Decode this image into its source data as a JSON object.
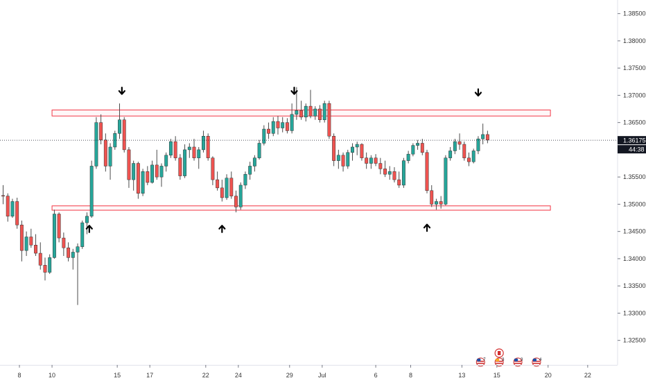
{
  "chart_data": {
    "type": "candlestick",
    "title": "",
    "xlabel": "",
    "ylabel": "",
    "ylim": [
      1.3205,
      1.3875
    ],
    "y_ticks": [
      "1.38500",
      "1.38000",
      "1.37500",
      "1.37000",
      "1.36500",
      "1.35500",
      "1.35000",
      "1.34500",
      "1.34000",
      "1.33500",
      "1.33000",
      "1.32500"
    ],
    "x_ticks": [
      {
        "label": "8",
        "idx": 3.5
      },
      {
        "label": "10",
        "idx": 10.5
      },
      {
        "label": "15",
        "idx": 24.5
      },
      {
        "label": "17",
        "idx": 31.5
      },
      {
        "label": "22",
        "idx": 43.5
      },
      {
        "label": "24",
        "idx": 50.5
      },
      {
        "label": "29",
        "idx": 61.5
      },
      {
        "label": "Jul",
        "idx": 68.5
      },
      {
        "label": "6",
        "idx": 80
      },
      {
        "label": "8",
        "idx": 87.5
      },
      {
        "label": "13",
        "idx": 98.5
      },
      {
        "label": "15",
        "idx": 106
      },
      {
        "label": "20",
        "idx": 117
      },
      {
        "label": "22",
        "idx": 125.5
      }
    ],
    "last_price": "1.36175",
    "countdown": "44:38",
    "last_price_value": 1.36175,
    "zones": [
      {
        "name": "resistance",
        "low": 1.3662,
        "high": 1.3673,
        "from_idx": 10.5,
        "to_idx": 117.5
      },
      {
        "name": "support",
        "low": 1.3489,
        "high": 1.3497,
        "from_idx": 10.5,
        "to_idx": 117.5
      }
    ],
    "arrows": [
      {
        "dir": "down",
        "idx": 25.5,
        "price": 1.3708
      },
      {
        "dir": "down",
        "idx": 62.5,
        "price": 1.3708
      },
      {
        "dir": "down",
        "idx": 102,
        "price": 1.3705
      },
      {
        "dir": "up",
        "idx": 18.5,
        "price": 1.3455
      },
      {
        "dir": "up",
        "idx": 47,
        "price": 1.3455
      },
      {
        "dir": "up",
        "idx": 91,
        "price": 1.3457
      }
    ],
    "event_badges": [
      {
        "flag": "us",
        "count": "7",
        "idx": 102.5
      },
      {
        "flag": "ca",
        "count": "",
        "idx": 106.5,
        "row": "upper"
      },
      {
        "flag": "mixed",
        "count": "3",
        "idx": 106.5
      },
      {
        "flag": "us",
        "count": "3",
        "idx": 110.5
      },
      {
        "flag": "us",
        "count": "4",
        "idx": 114.5
      }
    ],
    "colors": {
      "up": "#26a69a",
      "down": "#ef5350",
      "zone": "#f23645",
      "text": "#131722",
      "axis": "#787b86"
    },
    "candles": [
      [
        1.3516,
        1.3535,
        1.35,
        1.3515
      ],
      [
        1.3515,
        1.352,
        1.3468,
        1.3478
      ],
      [
        1.3478,
        1.351,
        1.3475,
        1.3505
      ],
      [
        1.3505,
        1.3512,
        1.3455,
        1.3462
      ],
      [
        1.3462,
        1.347,
        1.3395,
        1.3415
      ],
      [
        1.3415,
        1.345,
        1.3405,
        1.344
      ],
      [
        1.344,
        1.3455,
        1.342,
        1.3425
      ],
      [
        1.3425,
        1.3445,
        1.3405,
        1.341
      ],
      [
        1.341,
        1.343,
        1.338,
        1.3388
      ],
      [
        1.3388,
        1.3402,
        1.336,
        1.3375
      ],
      [
        1.3375,
        1.3408,
        1.3372,
        1.3402
      ],
      [
        1.3402,
        1.349,
        1.34,
        1.3482
      ],
      [
        1.3482,
        1.3485,
        1.343,
        1.3438
      ],
      [
        1.3438,
        1.3448,
        1.3405,
        1.342
      ],
      [
        1.342,
        1.343,
        1.3395,
        1.3402
      ],
      [
        1.3402,
        1.3418,
        1.338,
        1.3412
      ],
      [
        1.3412,
        1.3428,
        1.3315,
        1.3422
      ],
      [
        1.3422,
        1.347,
        1.3418,
        1.3466
      ],
      [
        1.3466,
        1.3485,
        1.3445,
        1.3478
      ],
      [
        1.3478,
        1.358,
        1.3475,
        1.357
      ],
      [
        1.357,
        1.366,
        1.3565,
        1.365
      ],
      [
        1.365,
        1.3665,
        1.361,
        1.3618
      ],
      [
        1.3618,
        1.363,
        1.356,
        1.357
      ],
      [
        1.357,
        1.3612,
        1.3545,
        1.3605
      ],
      [
        1.3605,
        1.3635,
        1.36,
        1.363
      ],
      [
        1.363,
        1.3685,
        1.362,
        1.3655
      ],
      [
        1.3655,
        1.366,
        1.3595,
        1.36
      ],
      [
        1.36,
        1.3605,
        1.353,
        1.3545
      ],
      [
        1.3545,
        1.358,
        1.3525,
        1.3575
      ],
      [
        1.3575,
        1.3578,
        1.351,
        1.352
      ],
      [
        1.352,
        1.3565,
        1.3515,
        1.356
      ],
      [
        1.356,
        1.357,
        1.3535,
        1.354
      ],
      [
        1.354,
        1.358,
        1.3538,
        1.3572
      ],
      [
        1.3572,
        1.36,
        1.3545,
        1.355
      ],
      [
        1.355,
        1.3575,
        1.3532,
        1.357
      ],
      [
        1.357,
        1.3595,
        1.356,
        1.359
      ],
      [
        1.359,
        1.362,
        1.3585,
        1.3615
      ],
      [
        1.3615,
        1.3625,
        1.358,
        1.3585
      ],
      [
        1.3585,
        1.3592,
        1.3545,
        1.3552
      ],
      [
        1.3552,
        1.361,
        1.3548,
        1.36
      ],
      [
        1.36,
        1.3612,
        1.3585,
        1.3605
      ],
      [
        1.3605,
        1.362,
        1.358,
        1.3585
      ],
      [
        1.3585,
        1.3605,
        1.3565,
        1.36
      ],
      [
        1.36,
        1.3635,
        1.3595,
        1.3625
      ],
      [
        1.3625,
        1.363,
        1.358,
        1.3585
      ],
      [
        1.3585,
        1.3588,
        1.3535,
        1.3545
      ],
      [
        1.3545,
        1.356,
        1.3525,
        1.353
      ],
      [
        1.353,
        1.3545,
        1.3505,
        1.3512
      ],
      [
        1.3512,
        1.3555,
        1.3508,
        1.3548
      ],
      [
        1.3548,
        1.356,
        1.351,
        1.3515
      ],
      [
        1.3515,
        1.3525,
        1.3485,
        1.3495
      ],
      [
        1.3495,
        1.354,
        1.349,
        1.3535
      ],
      [
        1.3535,
        1.356,
        1.3528,
        1.3555
      ],
      [
        1.3555,
        1.3578,
        1.3545,
        1.357
      ],
      [
        1.357,
        1.359,
        1.356,
        1.3585
      ],
      [
        1.3585,
        1.3618,
        1.3582,
        1.3612
      ],
      [
        1.3612,
        1.3645,
        1.3608,
        1.3638
      ],
      [
        1.3638,
        1.365,
        1.362,
        1.363
      ],
      [
        1.363,
        1.366,
        1.3625,
        1.3652
      ],
      [
        1.3652,
        1.3662,
        1.3628,
        1.364
      ],
      [
        1.364,
        1.366,
        1.3632,
        1.365
      ],
      [
        1.365,
        1.3658,
        1.363,
        1.3635
      ],
      [
        1.3635,
        1.3685,
        1.363,
        1.3665
      ],
      [
        1.3665,
        1.3715,
        1.3655,
        1.3672
      ],
      [
        1.3672,
        1.369,
        1.3655,
        1.366
      ],
      [
        1.366,
        1.3685,
        1.3652,
        1.368
      ],
      [
        1.368,
        1.371,
        1.3658,
        1.3662
      ],
      [
        1.3662,
        1.368,
        1.3655,
        1.3675
      ],
      [
        1.3675,
        1.3682,
        1.365,
        1.3655
      ],
      [
        1.3655,
        1.369,
        1.365,
        1.3685
      ],
      [
        1.3685,
        1.369,
        1.362,
        1.3625
      ],
      [
        1.3625,
        1.363,
        1.357,
        1.358
      ],
      [
        1.358,
        1.36,
        1.3565,
        1.359
      ],
      [
        1.359,
        1.3595,
        1.356,
        1.357
      ],
      [
        1.357,
        1.36,
        1.3565,
        1.3595
      ],
      [
        1.3595,
        1.3612,
        1.358,
        1.3605
      ],
      [
        1.3605,
        1.3615,
        1.359,
        1.361
      ],
      [
        1.361,
        1.3612,
        1.358,
        1.3585
      ],
      [
        1.3585,
        1.3595,
        1.3565,
        1.3575
      ],
      [
        1.3575,
        1.359,
        1.3565,
        1.3585
      ],
      [
        1.3585,
        1.3592,
        1.357,
        1.3575
      ],
      [
        1.3575,
        1.3585,
        1.3555,
        1.3565
      ],
      [
        1.3565,
        1.358,
        1.355,
        1.3555
      ],
      [
        1.3555,
        1.357,
        1.3545,
        1.356
      ],
      [
        1.356,
        1.3568,
        1.354,
        1.3545
      ],
      [
        1.3545,
        1.356,
        1.353,
        1.3535
      ],
      [
        1.3535,
        1.3585,
        1.353,
        1.358
      ],
      [
        1.358,
        1.3598,
        1.3575,
        1.3592
      ],
      [
        1.3592,
        1.3612,
        1.3588,
        1.3608
      ],
      [
        1.3608,
        1.3618,
        1.36,
        1.3612
      ],
      [
        1.3612,
        1.362,
        1.359,
        1.3595
      ],
      [
        1.3595,
        1.36,
        1.352,
        1.3525
      ],
      [
        1.3525,
        1.3535,
        1.3495,
        1.35
      ],
      [
        1.35,
        1.351,
        1.349,
        1.3505
      ],
      [
        1.3505,
        1.3515,
        1.3492,
        1.35
      ],
      [
        1.35,
        1.359,
        1.3498,
        1.3585
      ],
      [
        1.3585,
        1.3605,
        1.358,
        1.3598
      ],
      [
        1.3598,
        1.362,
        1.3592,
        1.3615
      ],
      [
        1.3615,
        1.363,
        1.36,
        1.361
      ],
      [
        1.361,
        1.3615,
        1.358,
        1.3585
      ],
      [
        1.3585,
        1.3595,
        1.357,
        1.3578
      ],
      [
        1.3578,
        1.3602,
        1.3575,
        1.3598
      ],
      [
        1.3598,
        1.3625,
        1.3592,
        1.362
      ],
      [
        1.362,
        1.3648,
        1.361,
        1.3628
      ],
      [
        1.3628,
        1.3635,
        1.3612,
        1.3618
      ]
    ]
  }
}
